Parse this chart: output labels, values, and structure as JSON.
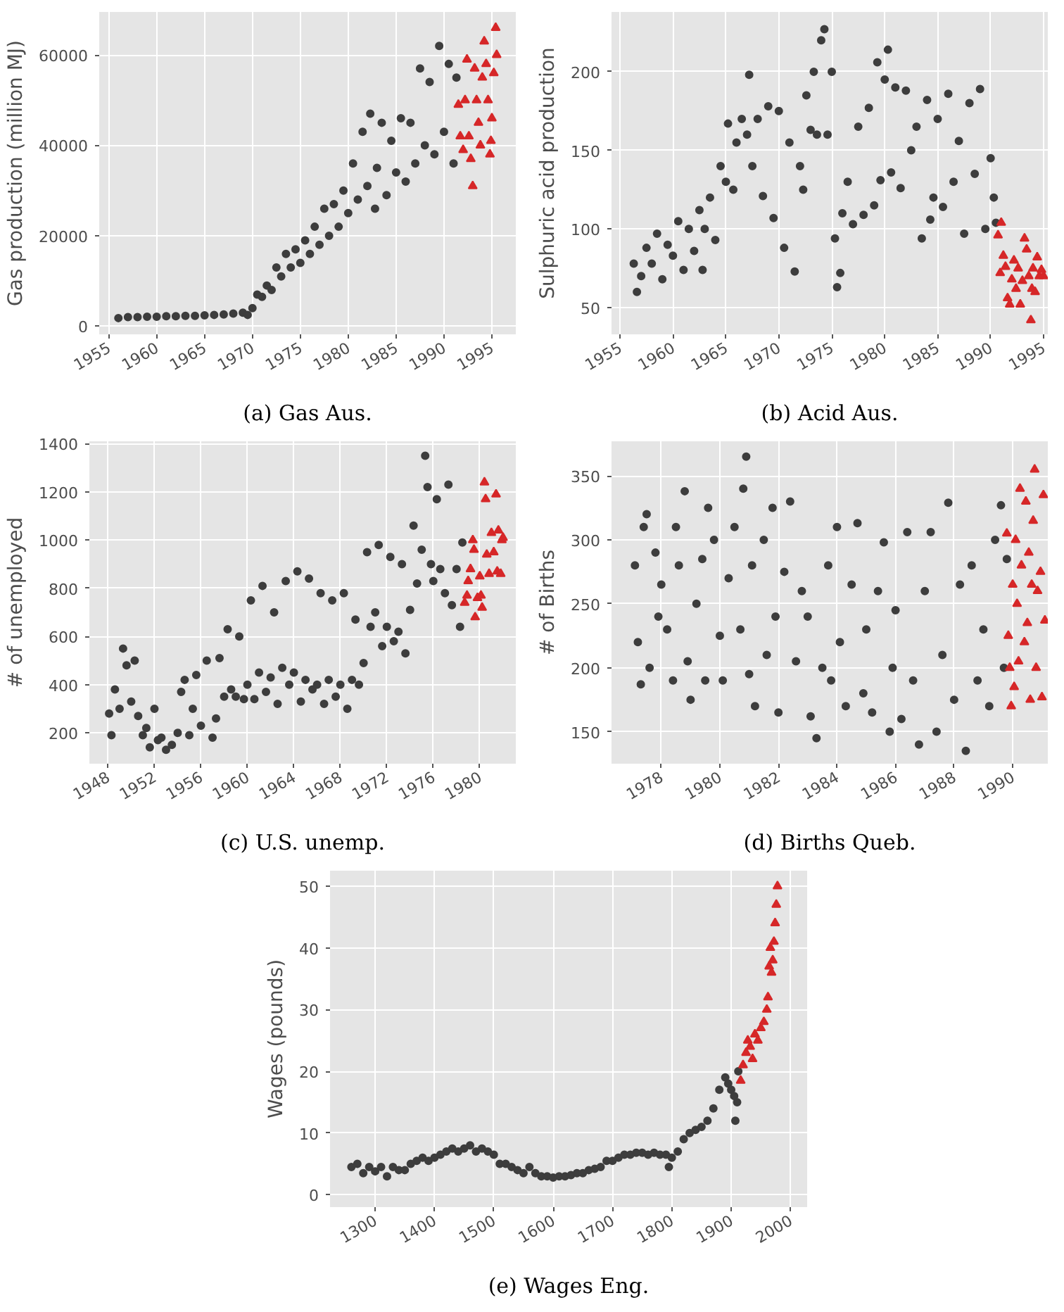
{
  "chart_data": [
    {
      "type": "scatter",
      "xlabel": "(a) Gas Aus.",
      "ylabel": "Gas production (million MJ)",
      "xlim": [
        1954.0,
        1997.5
      ],
      "ylim": [
        -1800,
        69500
      ],
      "xticks": [
        1955,
        1960,
        1965,
        1970,
        1975,
        1980,
        1985,
        1990,
        1995
      ],
      "yticks": [
        0,
        20000,
        40000,
        60000
      ],
      "grid": true,
      "series": [
        {
          "color": "#3d3d3d",
          "marker": "circle",
          "x": [
            1956.0,
            1957,
            1958,
            1959,
            1960,
            1961,
            1962,
            1963,
            1964,
            1965,
            1966,
            1967,
            1968,
            1969,
            1969.5,
            1970,
            1970.5,
            1971,
            1971.5,
            1972,
            1972.5,
            1973,
            1973.5,
            1974,
            1974.5,
            1975,
            1975.5,
            1976,
            1976.5,
            1977,
            1977.5,
            1978,
            1978.5,
            1979,
            1979.5,
            1980,
            1980.5,
            1981,
            1981.5,
            1982,
            1982.3,
            1982.8,
            1983,
            1983.5,
            1984,
            1984.5,
            1985,
            1985.5,
            1986,
            1986.5,
            1987,
            1987.5,
            1988,
            1988.5,
            1989,
            1989.5,
            1990,
            1990.5,
            1991,
            1991.3
          ],
          "values": [
            1800,
            2000,
            2000,
            2100,
            2100,
            2200,
            2200,
            2300,
            2300,
            2400,
            2500,
            2600,
            2800,
            3000,
            2500,
            4000,
            7000,
            6500,
            9000,
            8000,
            13000,
            11000,
            16000,
            13000,
            17000,
            14000,
            19000,
            16000,
            22000,
            18000,
            26000,
            20000,
            27000,
            22000,
            30000,
            25000,
            36000,
            28000,
            43000,
            31000,
            47000,
            26000,
            35000,
            45000,
            29000,
            41000,
            34000,
            46000,
            32000,
            45000,
            36000,
            57000,
            40000,
            54000,
            38000,
            62000,
            43000,
            58000,
            36000,
            55000
          ]
        },
        {
          "color": "#d62728",
          "marker": "triangle",
          "x": [
            1991.5,
            1991.7,
            1992,
            1992.2,
            1992.4,
            1992.6,
            1992.8,
            1993,
            1993.2,
            1993.4,
            1993.6,
            1993.8,
            1994,
            1994.2,
            1994.4,
            1994.6,
            1994.8,
            1994.9,
            1995,
            1995.2,
            1995.4,
            1995.5
          ],
          "values": [
            49000,
            42000,
            39000,
            50000,
            59000,
            42000,
            37000,
            31000,
            57000,
            50000,
            45000,
            40000,
            55000,
            63000,
            58000,
            50000,
            38000,
            41000,
            46000,
            56000,
            66000,
            60000
          ]
        }
      ]
    },
    {
      "type": "scatter",
      "xlabel": "(b) Acid Aus.",
      "ylabel": "Sulphuric acid production",
      "xlim": [
        1954.2,
        1995.4
      ],
      "ylim": [
        33,
        238
      ],
      "xticks": [
        1955,
        1960,
        1965,
        1970,
        1975,
        1980,
        1985,
        1990,
        1995
      ],
      "yticks": [
        50,
        100,
        150,
        200
      ],
      "grid": true,
      "series": [
        {
          "color": "#3d3d3d",
          "marker": "circle",
          "x": [
            1956.3,
            1956.6,
            1957,
            1957.5,
            1958,
            1958.5,
            1959,
            1959.5,
            1960,
            1960.5,
            1961,
            1961.5,
            1962,
            1962.5,
            1962.8,
            1963,
            1963.5,
            1964,
            1964.5,
            1965,
            1965.2,
            1965.7,
            1966,
            1966.5,
            1967,
            1967.2,
            1967.5,
            1968,
            1968.5,
            1969,
            1969.5,
            1970,
            1970.5,
            1971,
            1971.5,
            1972,
            1972.3,
            1972.6,
            1973,
            1973.3,
            1973.6,
            1974,
            1974.3,
            1974.6,
            1975,
            1975.3,
            1975.5,
            1975.8,
            1976,
            1976.5,
            1977,
            1977.5,
            1978,
            1978.5,
            1979,
            1979.3,
            1979.6,
            1980,
            1980.3,
            1980.6,
            1981,
            1981.5,
            1982,
            1982.5,
            1983,
            1983.5,
            1984,
            1984.3,
            1984.6,
            1985,
            1985.5,
            1986,
            1986.5,
            1987,
            1987.5,
            1988,
            1988.5,
            1989,
            1989.5,
            1990,
            1990.3,
            1990.5
          ],
          "values": [
            78,
            60,
            70,
            88,
            78,
            97,
            68,
            90,
            83,
            105,
            74,
            100,
            86,
            112,
            74,
            100,
            120,
            93,
            140,
            130,
            167,
            125,
            155,
            170,
            160,
            198,
            140,
            170,
            121,
            178,
            107,
            175,
            88,
            155,
            73,
            140,
            125,
            185,
            163,
            200,
            160,
            220,
            227,
            160,
            200,
            94,
            63,
            72,
            110,
            130,
            103,
            165,
            109,
            177,
            115,
            206,
            131,
            195,
            214,
            136,
            190,
            126,
            188,
            150,
            165,
            94,
            182,
            106,
            120,
            170,
            114,
            186,
            130,
            156,
            97,
            180,
            135,
            189,
            100,
            145,
            120,
            104
          ]
        },
        {
          "color": "#d62728",
          "marker": "triangle",
          "x": [
            1990.7,
            1990.9,
            1991,
            1991.2,
            1991.4,
            1991.6,
            1991.8,
            1992,
            1992.2,
            1992.4,
            1992.6,
            1992.8,
            1993,
            1993.2,
            1993.4,
            1993.6,
            1993.8,
            1993.9,
            1994,
            1994.2,
            1994.4,
            1994.6,
            1994.8,
            1995
          ],
          "values": [
            96,
            72,
            104,
            83,
            76,
            56,
            52,
            68,
            80,
            62,
            75,
            52,
            67,
            94,
            87,
            70,
            42,
            62,
            75,
            60,
            82,
            70,
            74,
            70
          ]
        }
      ]
    },
    {
      "type": "scatter",
      "xlabel": "(c) U.S. unemp.",
      "ylabel": "# of unemployed",
      "xlim": [
        1946.4,
        1983.1
      ],
      "ylim": [
        72,
        1410
      ],
      "xticks": [
        1948,
        1952,
        1956,
        1960,
        1964,
        1968,
        1972,
        1976,
        1980
      ],
      "yticks": [
        200,
        400,
        600,
        800,
        1000,
        1200,
        1400
      ],
      "grid": true,
      "series": [
        {
          "color": "#3d3d3d",
          "marker": "circle",
          "x": [
            1948.1,
            1948.3,
            1948.6,
            1949,
            1949.3,
            1949.6,
            1950,
            1950.3,
            1950.6,
            1951,
            1951.3,
            1951.6,
            1952,
            1952.3,
            1952.6,
            1953,
            1953.5,
            1954,
            1954.3,
            1954.6,
            1955,
            1955.3,
            1955.6,
            1956,
            1956.5,
            1957,
            1957.3,
            1957.6,
            1958,
            1958.3,
            1958.6,
            1959,
            1959.3,
            1959.7,
            1960,
            1960.3,
            1960.6,
            1961,
            1961.3,
            1961.6,
            1962,
            1962.3,
            1962.6,
            1963,
            1963.3,
            1963.6,
            1964,
            1964.3,
            1964.6,
            1965,
            1965.3,
            1965.6,
            1966,
            1966.3,
            1966.6,
            1967,
            1967.3,
            1967.6,
            1968,
            1968.3,
            1968.6,
            1969,
            1969.3,
            1969.6,
            1970,
            1970.3,
            1970.6,
            1971,
            1971.3,
            1971.6,
            1972,
            1972.3,
            1972.6,
            1973,
            1973.3,
            1973.6,
            1974,
            1974.3,
            1974.6,
            1975,
            1975.3,
            1975.5,
            1975.8,
            1976,
            1976.3,
            1976.6,
            1977,
            1977.3,
            1977.6,
            1978,
            1978.3,
            1978.5
          ],
          "values": [
            280,
            190,
            380,
            300,
            550,
            480,
            330,
            500,
            270,
            190,
            220,
            140,
            300,
            170,
            180,
            130,
            150,
            200,
            370,
            420,
            190,
            300,
            440,
            230,
            500,
            180,
            260,
            510,
            350,
            630,
            380,
            350,
            600,
            340,
            400,
            750,
            340,
            450,
            810,
            370,
            430,
            700,
            320,
            470,
            830,
            400,
            450,
            870,
            330,
            420,
            840,
            380,
            400,
            780,
            320,
            420,
            750,
            350,
            400,
            780,
            300,
            420,
            670,
            400,
            490,
            950,
            640,
            700,
            980,
            560,
            640,
            930,
            580,
            620,
            900,
            530,
            710,
            1060,
            820,
            960,
            1350,
            1220,
            900,
            830,
            1170,
            880,
            780,
            1230,
            730,
            880,
            640,
            990
          ]
        },
        {
          "color": "#d62728",
          "marker": "triangle",
          "x": [
            1978.7,
            1978.9,
            1979,
            1979.2,
            1979.4,
            1979.5,
            1979.6,
            1979.8,
            1980,
            1980.1,
            1980.2,
            1980.4,
            1980.5,
            1980.6,
            1980.8,
            1981,
            1981.2,
            1981.4,
            1981.5,
            1981.6,
            1981.8,
            1981.9,
            1982
          ],
          "values": [
            740,
            770,
            830,
            880,
            1000,
            960,
            680,
            760,
            850,
            770,
            720,
            1240,
            1170,
            940,
            860,
            1030,
            950,
            1190,
            870,
            1040,
            860,
            1000,
            1010
          ]
        }
      ]
    },
    {
      "type": "scatter",
      "xlabel": "(d) Births Queb.",
      "ylabel": "# of Births",
      "xlim": [
        1976.3,
        1991.2
      ],
      "ylim": [
        125,
        377
      ],
      "xticks": [
        1978,
        1980,
        1982,
        1984,
        1986,
        1988,
        1990
      ],
      "yticks": [
        150,
        200,
        250,
        300,
        350
      ],
      "grid": true,
      "series": [
        {
          "color": "#3d3d3d",
          "marker": "circle",
          "x": [
            1977.1,
            1977.2,
            1977.3,
            1977.4,
            1977.5,
            1977.6,
            1977.8,
            1977.9,
            1978,
            1978.2,
            1978.4,
            1978.5,
            1978.6,
            1978.8,
            1978.9,
            1979,
            1979.2,
            1979.4,
            1979.5,
            1979.6,
            1979.8,
            1980,
            1980.1,
            1980.3,
            1980.5,
            1980.7,
            1980.8,
            1980.9,
            1981,
            1981.1,
            1981.2,
            1981.5,
            1981.6,
            1981.8,
            1981.9,
            1982,
            1982.2,
            1982.4,
            1982.6,
            1982.8,
            1983,
            1983.1,
            1983.3,
            1983.5,
            1983.7,
            1983.8,
            1984,
            1984.1,
            1984.3,
            1984.5,
            1984.7,
            1984.9,
            1985,
            1985.2,
            1985.4,
            1985.6,
            1985.8,
            1985.9,
            1986,
            1986.2,
            1986.4,
            1986.6,
            1986.8,
            1987,
            1987.2,
            1987.4,
            1987.6,
            1987.8,
            1988,
            1988.2,
            1988.4,
            1988.6,
            1988.8,
            1989,
            1989.2,
            1989.4,
            1989.6,
            1989.7,
            1989.8
          ],
          "values": [
            280,
            220,
            187,
            310,
            320,
            200,
            290,
            240,
            265,
            230,
            190,
            310,
            280,
            338,
            205,
            175,
            250,
            285,
            190,
            325,
            300,
            225,
            190,
            270,
            310,
            230,
            340,
            365,
            195,
            280,
            170,
            300,
            210,
            325,
            240,
            165,
            275,
            330,
            205,
            260,
            240,
            162,
            145,
            200,
            280,
            190,
            310,
            220,
            170,
            265,
            313,
            180,
            230,
            165,
            260,
            298,
            150,
            200,
            245,
            160,
            306,
            190,
            140,
            260,
            306,
            150,
            210,
            329,
            175,
            265,
            135,
            280,
            190,
            230,
            170,
            300,
            327,
            200,
            285
          ]
        },
        {
          "color": "#d62728",
          "marker": "triangle",
          "x": [
            1989.8,
            1989.85,
            1989.9,
            1989.95,
            1990,
            1990.05,
            1990.1,
            1990.15,
            1990.2,
            1990.25,
            1990.3,
            1990.4,
            1990.45,
            1990.5,
            1990.55,
            1990.6,
            1990.65,
            1990.7,
            1990.75,
            1990.8,
            1990.85,
            1990.95,
            1991,
            1991.05,
            1991.1
          ],
          "values": [
            305,
            225,
            200,
            170,
            265,
            185,
            300,
            250,
            205,
            340,
            280,
            220,
            330,
            235,
            290,
            175,
            265,
            315,
            355,
            200,
            260,
            275,
            177,
            335,
            237
          ]
        }
      ]
    },
    {
      "type": "scatter",
      "xlabel": "(e) Wages Eng.",
      "ylabel": "Wages (pounds)",
      "xlim": [
        1224,
        2028
      ],
      "ylim": [
        -2,
        52.5
      ],
      "xticks": [
        1300,
        1400,
        1500,
        1600,
        1700,
        1800,
        1900,
        2000
      ],
      "yticks": [
        0,
        10,
        20,
        30,
        40,
        50
      ],
      "grid": true,
      "series": [
        {
          "color": "#3d3d3d",
          "marker": "circle",
          "x": [
            1260,
            1270,
            1280,
            1290,
            1300,
            1310,
            1320,
            1330,
            1340,
            1350,
            1360,
            1370,
            1380,
            1390,
            1400,
            1410,
            1420,
            1430,
            1440,
            1450,
            1460,
            1470,
            1480,
            1490,
            1500,
            1510,
            1520,
            1530,
            1540,
            1550,
            1560,
            1570,
            1580,
            1590,
            1600,
            1610,
            1620,
            1630,
            1640,
            1650,
            1660,
            1670,
            1680,
            1690,
            1700,
            1710,
            1720,
            1730,
            1740,
            1750,
            1760,
            1770,
            1780,
            1790,
            1795,
            1800,
            1810,
            1820,
            1830,
            1840,
            1850,
            1860,
            1870,
            1880,
            1890,
            1895,
            1900,
            1905,
            1907,
            1910,
            1912
          ],
          "values": [
            4.5,
            5,
            3.5,
            4.5,
            3.8,
            4.5,
            3,
            4.5,
            4,
            4,
            5,
            5.5,
            6,
            5.5,
            6,
            6.5,
            7,
            7.5,
            7,
            7.5,
            8,
            7,
            7.5,
            7,
            6.5,
            5,
            5,
            4.5,
            4,
            3.5,
            4.5,
            3.5,
            3,
            3,
            2.8,
            3,
            3,
            3.2,
            3.5,
            3.5,
            4,
            4.2,
            4.5,
            5.5,
            5.5,
            6,
            6.5,
            6.5,
            6.8,
            6.8,
            6.5,
            6.8,
            6.5,
            6.5,
            4.5,
            6,
            7,
            9,
            10,
            10.5,
            11,
            12,
            14,
            17,
            19,
            18,
            17,
            16,
            12,
            15,
            20
          ]
        },
        {
          "color": "#d62728",
          "marker": "triangle",
          "x": [
            1916,
            1920,
            1925,
            1928,
            1932,
            1936,
            1940,
            1945,
            1950,
            1955,
            1960,
            1962,
            1964,
            1966,
            1968,
            1970,
            1972,
            1974,
            1976,
            1978
          ],
          "values": [
            18.5,
            21,
            23,
            25,
            24,
            22,
            26,
            25,
            27,
            28,
            30,
            32,
            37,
            40,
            36,
            38,
            41,
            44,
            47,
            50
          ]
        }
      ]
    }
  ]
}
